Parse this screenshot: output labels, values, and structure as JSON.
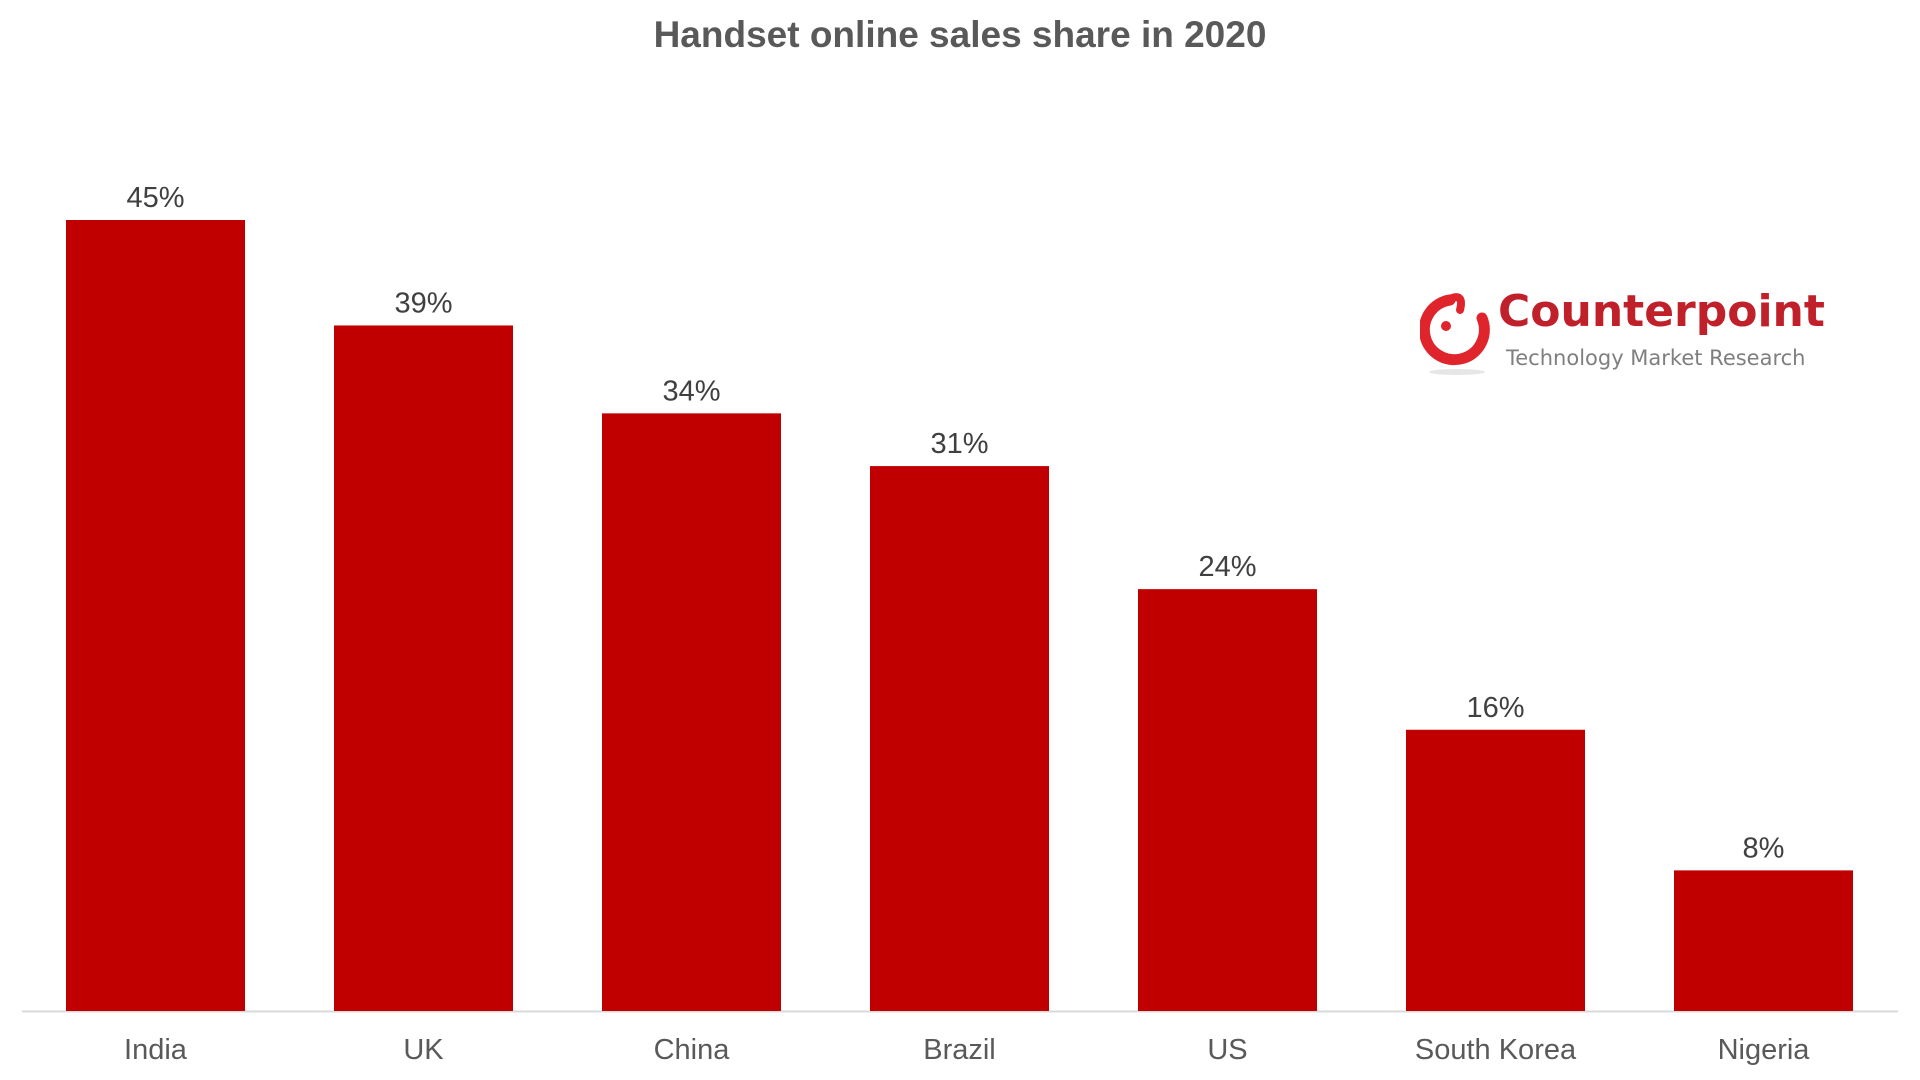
{
  "chart_data": {
    "type": "bar",
    "title": "Handset online sales share in 2020",
    "categories": [
      "India",
      "UK",
      "China",
      "Brazil",
      "US",
      "South Korea",
      "Nigeria"
    ],
    "values": [
      45,
      39,
      34,
      31,
      24,
      16,
      8
    ],
    "value_labels": [
      "45%",
      "39%",
      "34%",
      "31%",
      "24%",
      "16%",
      "8%"
    ],
    "unit": "%",
    "ylim": [
      0,
      45
    ],
    "grid": false,
    "bar_color": "#c00000"
  },
  "logo": {
    "name": "Counterpoint",
    "tagline": "Technology Market Research",
    "color": "#c0202a"
  }
}
